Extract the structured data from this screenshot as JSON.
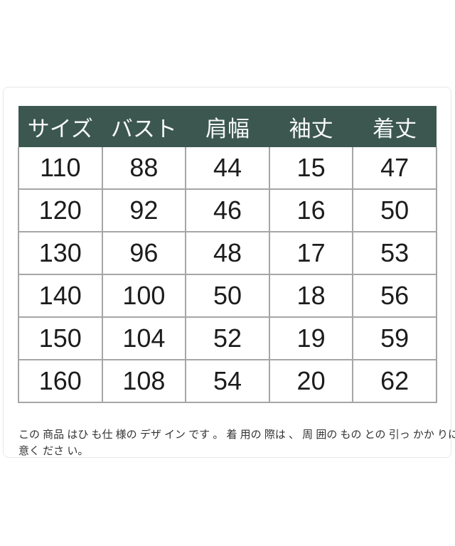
{
  "chart_data": {
    "type": "table",
    "columns": [
      "サイズ",
      "バスト",
      "肩幅",
      "袖丈",
      "着丈"
    ],
    "rows": [
      [
        110,
        88,
        44,
        15,
        47
      ],
      [
        120,
        92,
        46,
        16,
        50
      ],
      [
        130,
        96,
        48,
        17,
        53
      ],
      [
        140,
        100,
        50,
        18,
        56
      ],
      [
        150,
        104,
        52,
        19,
        59
      ],
      [
        160,
        108,
        54,
        20,
        62
      ]
    ],
    "layout": "header row dark green, body white with gray grid, no vertical dividers in header"
  },
  "note": {
    "line1": "この 商品 はひ も仕 様の デザ イン です 。 着 用の 際は 、 周 囲の もの との 引っ かか りに ご注",
    "line2": "意く ださ い。"
  },
  "colors": {
    "header_bg": "#3b574f",
    "header_text": "#f6f8f7",
    "table_border": "#a6a6a6",
    "card_border": "#e7e7e7",
    "body_text": "#1c1c1c",
    "note_text": "#333333",
    "page_bg": "#ffffff"
  }
}
